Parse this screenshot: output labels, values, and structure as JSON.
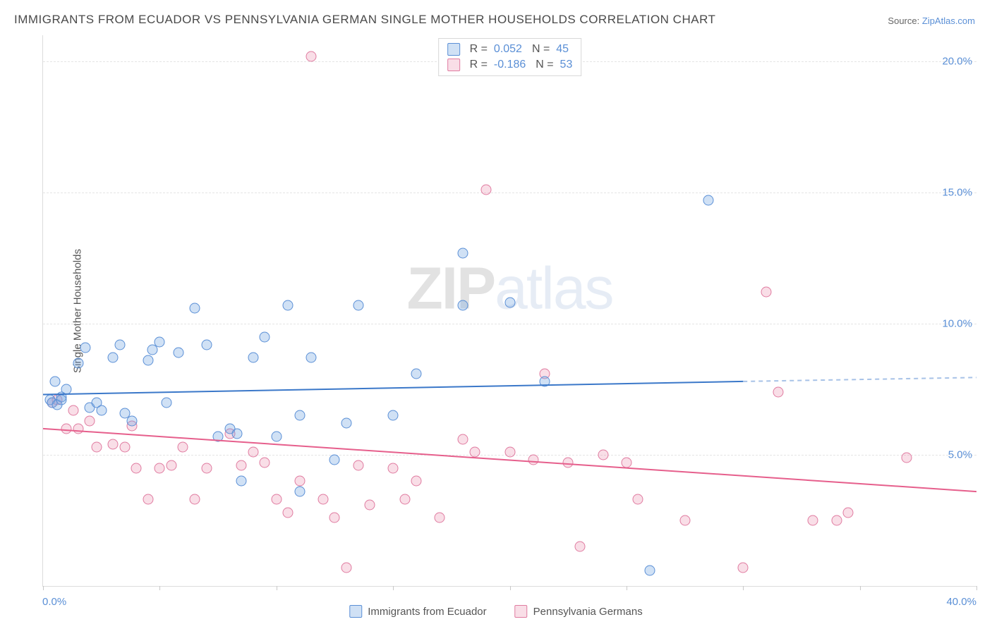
{
  "title": "IMMIGRANTS FROM ECUADOR VS PENNSYLVANIA GERMAN SINGLE MOTHER HOUSEHOLDS CORRELATION CHART",
  "source": {
    "label": "Source:",
    "site": "ZipAtlas.com"
  },
  "watermark": {
    "z": "ZIP",
    "rest": "atlas"
  },
  "yaxis_title": "Single Mother Households",
  "xaxis": {
    "min": 0,
    "max": 40,
    "label_min": "0.0%",
    "label_max": "40.0%",
    "ticks": [
      0,
      5,
      10,
      15,
      20,
      25,
      30,
      35,
      40
    ]
  },
  "yaxis": {
    "min": 0,
    "max": 21,
    "gridlines": [
      5,
      10,
      15,
      20
    ],
    "labels": [
      "5.0%",
      "10.0%",
      "15.0%",
      "20.0%"
    ]
  },
  "series": {
    "blue": {
      "label": "Immigrants from Ecuador",
      "fill": "rgba(120,170,225,0.35)",
      "stroke": "#5a8fd6",
      "line_color": "#3b78c9",
      "trend": {
        "x1": 0,
        "y1": 7.3,
        "x2_solid": 30,
        "y2_solid": 7.8,
        "x2_dash": 40,
        "y2_dash": 7.95
      },
      "R": "0.052",
      "N": "45",
      "points": [
        [
          0.3,
          7.1
        ],
        [
          0.4,
          7.0
        ],
        [
          0.6,
          6.9
        ],
        [
          0.8,
          7.2
        ],
        [
          0.8,
          7.1
        ],
        [
          1.5,
          8.5
        ],
        [
          1.8,
          9.1
        ],
        [
          2.0,
          6.8
        ],
        [
          2.3,
          7.0
        ],
        [
          2.5,
          6.7
        ],
        [
          3.0,
          8.7
        ],
        [
          3.3,
          9.2
        ],
        [
          3.5,
          6.6
        ],
        [
          4.5,
          8.6
        ],
        [
          4.7,
          9.0
        ],
        [
          5.0,
          9.3
        ],
        [
          5.3,
          7.0
        ],
        [
          5.8,
          8.9
        ],
        [
          3.8,
          6.3
        ],
        [
          6.5,
          10.6
        ],
        [
          7.0,
          9.2
        ],
        [
          7.5,
          5.7
        ],
        [
          8.0,
          6.0
        ],
        [
          8.3,
          5.8
        ],
        [
          8.5,
          4.0
        ],
        [
          9.0,
          8.7
        ],
        [
          9.5,
          9.5
        ],
        [
          10.0,
          5.7
        ],
        [
          10.5,
          10.7
        ],
        [
          11.0,
          3.6
        ],
        [
          11.0,
          6.5
        ],
        [
          11.5,
          8.7
        ],
        [
          12.5,
          4.8
        ],
        [
          13.0,
          6.2
        ],
        [
          13.5,
          10.7
        ],
        [
          15.0,
          6.5
        ],
        [
          16.0,
          8.1
        ],
        [
          18.0,
          12.7
        ],
        [
          18.0,
          10.7
        ],
        [
          20.0,
          10.8
        ],
        [
          21.5,
          7.8
        ],
        [
          26.0,
          0.6
        ],
        [
          28.5,
          14.7
        ],
        [
          0.5,
          7.8
        ],
        [
          1.0,
          7.5
        ]
      ]
    },
    "pink": {
      "label": "Pennsylvania Germans",
      "fill": "rgba(235,145,175,0.30)",
      "stroke": "#e07ba0",
      "line_color": "#e65f8c",
      "trend": {
        "x1": 0,
        "y1": 6.0,
        "x2_solid": 40,
        "y2_solid": 3.6
      },
      "R": "-0.186",
      "N": "53",
      "points": [
        [
          0.4,
          7.0
        ],
        [
          0.6,
          7.1
        ],
        [
          1.0,
          6.0
        ],
        [
          1.3,
          6.7
        ],
        [
          1.5,
          6.0
        ],
        [
          2.0,
          6.3
        ],
        [
          2.3,
          5.3
        ],
        [
          3.0,
          5.4
        ],
        [
          3.5,
          5.3
        ],
        [
          3.8,
          6.1
        ],
        [
          4.0,
          4.5
        ],
        [
          4.5,
          3.3
        ],
        [
          5.0,
          4.5
        ],
        [
          5.5,
          4.6
        ],
        [
          6.0,
          5.3
        ],
        [
          6.5,
          3.3
        ],
        [
          7.0,
          4.5
        ],
        [
          8.0,
          5.8
        ],
        [
          8.5,
          4.6
        ],
        [
          9.0,
          5.1
        ],
        [
          9.5,
          4.7
        ],
        [
          10.0,
          3.3
        ],
        [
          10.5,
          2.8
        ],
        [
          11.0,
          4.0
        ],
        [
          11.5,
          20.2
        ],
        [
          12.0,
          3.3
        ],
        [
          12.5,
          2.6
        ],
        [
          13.0,
          0.7
        ],
        [
          13.5,
          4.6
        ],
        [
          14.0,
          3.1
        ],
        [
          15.0,
          4.5
        ],
        [
          15.5,
          3.3
        ],
        [
          16.0,
          4.0
        ],
        [
          17.0,
          2.6
        ],
        [
          18.0,
          5.6
        ],
        [
          18.5,
          5.1
        ],
        [
          19.0,
          15.1
        ],
        [
          20.0,
          5.1
        ],
        [
          21.0,
          4.8
        ],
        [
          21.5,
          8.1
        ],
        [
          22.5,
          4.7
        ],
        [
          23.0,
          1.5
        ],
        [
          24.0,
          5.0
        ],
        [
          25.0,
          4.7
        ],
        [
          25.5,
          3.3
        ],
        [
          27.5,
          2.5
        ],
        [
          30.0,
          0.7
        ],
        [
          31.0,
          11.2
        ],
        [
          31.5,
          7.4
        ],
        [
          33.0,
          2.5
        ],
        [
          34.0,
          2.5
        ],
        [
          34.5,
          2.8
        ],
        [
          37.0,
          4.9
        ]
      ]
    }
  },
  "legend_top": {
    "r_label": "R",
    "n_label": "N"
  }
}
